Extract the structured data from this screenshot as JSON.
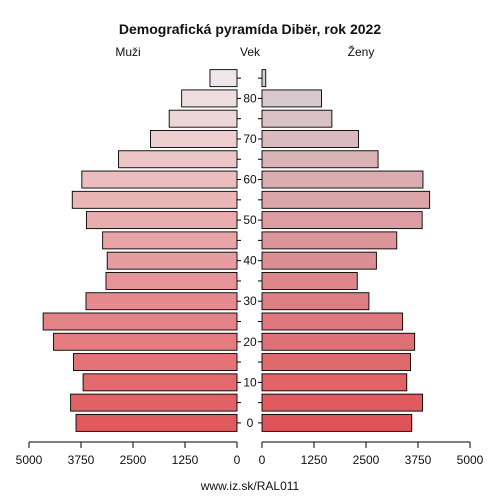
{
  "chart_data": {
    "type": "bar",
    "title": "Demografická pyramída Dibër, rok 2022",
    "left_label": "Muži",
    "center_label": "Vek",
    "right_label": "Ženy",
    "footer": "www.iz.sk/RAL011",
    "x_max": 5000,
    "x_ticks": [
      5000,
      3750,
      2500,
      1250,
      0
    ],
    "age_ticks": [
      "0",
      "10",
      "20",
      "30",
      "40",
      "50",
      "60",
      "70",
      "80"
    ],
    "age_groups": [
      "0-4",
      "5-9",
      "10-14",
      "15-19",
      "20-24",
      "25-29",
      "30-34",
      "35-39",
      "40-44",
      "45-49",
      "50-54",
      "55-59",
      "60-64",
      "65-69",
      "70-74",
      "75-79",
      "80-84",
      "85+"
    ],
    "series": [
      {
        "name": "Muži",
        "values": [
          3870,
          4000,
          3700,
          3930,
          4410,
          4660,
          3630,
          3150,
          3120,
          3230,
          3620,
          3960,
          3730,
          2850,
          2080,
          1630,
          1330,
          650
        ]
      },
      {
        "name": "Ženy",
        "values": [
          3600,
          3860,
          3480,
          3570,
          3670,
          3380,
          2570,
          2290,
          2750,
          3240,
          3850,
          4030,
          3870,
          2790,
          2320,
          1680,
          1430,
          90
        ]
      }
    ],
    "colors": {
      "male_young": "#e05a5e",
      "male_old": "#efe6e8",
      "female_young": "#e05458",
      "female_old": "#d8d0d4"
    }
  }
}
